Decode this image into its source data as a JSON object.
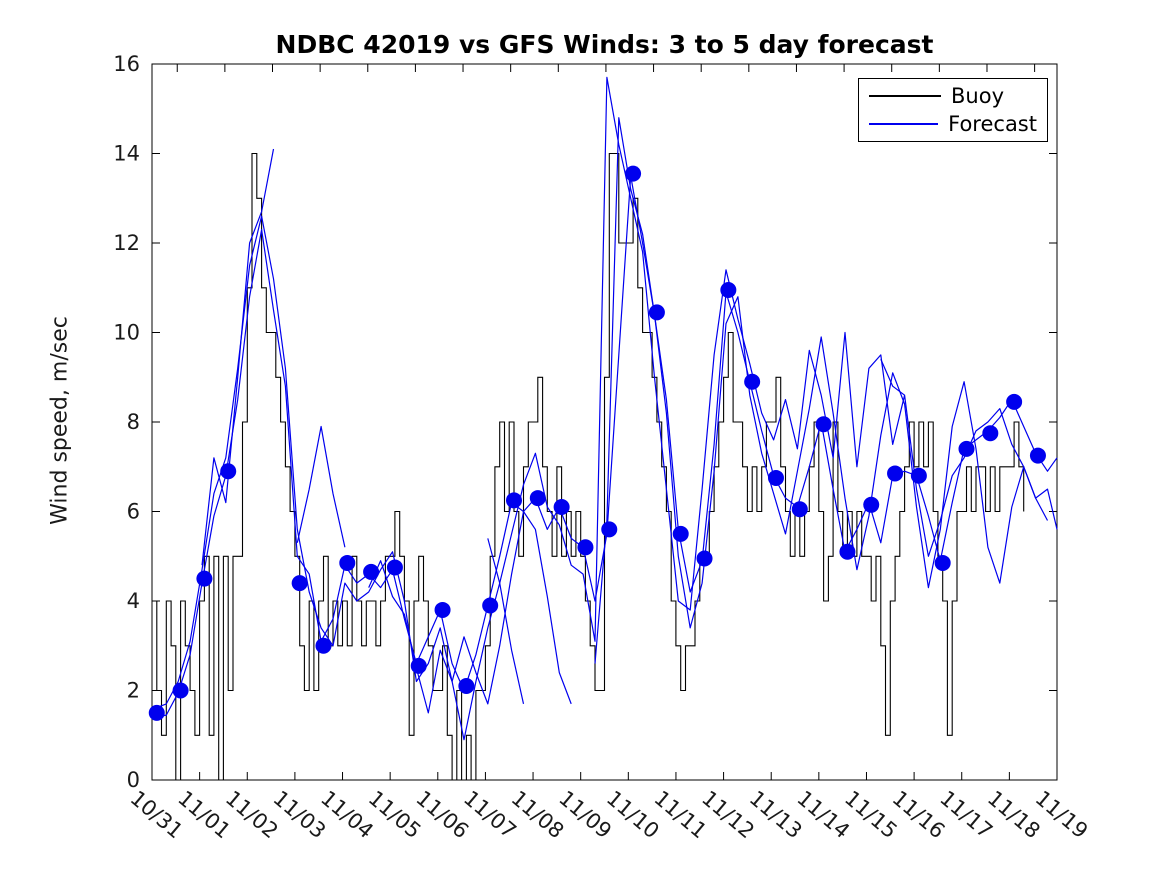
{
  "chart_data": {
    "type": "line",
    "title": "NDBC 42019 vs GFS Winds: 3 to 5 day forecast",
    "ylabel": "Wind speed, m/sec",
    "xlabel": "",
    "ylim": [
      0,
      16
    ],
    "yticks": [
      0,
      2,
      4,
      6,
      8,
      10,
      12,
      14,
      16
    ],
    "xticklabels": [
      "10/31",
      "11/01",
      "11/02",
      "11/03",
      "11/04",
      "11/05",
      "11/06",
      "11/07",
      "11/08",
      "11/09",
      "11/10",
      "11/11",
      "11/12",
      "11/13",
      "11/14",
      "11/15",
      "11/16",
      "11/17",
      "11/18",
      "11/19"
    ],
    "x_unit": "days since 10/31",
    "grid": false,
    "legend": [
      {
        "label": "Buoy",
        "color": "#000000"
      },
      {
        "label": "Forecast",
        "color": "#0000EE"
      }
    ],
    "series": {
      "buoy": {
        "name": "Buoy",
        "style": "steps",
        "color": "#000000",
        "x0": 0,
        "dt": 0.1,
        "values": [
          4,
          2,
          1,
          4,
          3,
          0,
          4,
          3,
          2,
          1,
          4,
          5,
          1,
          5,
          0,
          5,
          2,
          5,
          5,
          8,
          11,
          14,
          13,
          11,
          10,
          10,
          9,
          8,
          7,
          6,
          5,
          3,
          2,
          4,
          2,
          4,
          5,
          3,
          4,
          3,
          4,
          3,
          5,
          4,
          3,
          4,
          4,
          3,
          4,
          5,
          5,
          6,
          5,
          4,
          1,
          4,
          5,
          4,
          3,
          2,
          2,
          3,
          1,
          0,
          2,
          0,
          1,
          0,
          2,
          2,
          3,
          5,
          7,
          8,
          6,
          8,
          6,
          5,
          7,
          8,
          8,
          9,
          7,
          6,
          5,
          7,
          5,
          6,
          5,
          6,
          5,
          4,
          3,
          2,
          2,
          9,
          14,
          14,
          12,
          12,
          12,
          13,
          11,
          10,
          10,
          9,
          8,
          7,
          6,
          4,
          3,
          2,
          3,
          3,
          4,
          5,
          5,
          6,
          7,
          8,
          9,
          10,
          8,
          8,
          7,
          6,
          7,
          6,
          7,
          8,
          8,
          9,
          7,
          6,
          5,
          6,
          5,
          6,
          7,
          8,
          6,
          4,
          5,
          8,
          6,
          5,
          6,
          5,
          6,
          5,
          5,
          4,
          5,
          3,
          1,
          4,
          5,
          6,
          7,
          8,
          7,
          8,
          7,
          8,
          6,
          5,
          4,
          1,
          4,
          6,
          6,
          7,
          6,
          7,
          7,
          6,
          7,
          6,
          7,
          7,
          7,
          8,
          7,
          6
        ]
      },
      "forecast": {
        "name": "Forecast",
        "color": "#0000EE",
        "lines": [
          {
            "x0": 0.05,
            "dt": 0.25,
            "values": [
              1.4,
              1.45,
              1.95,
              2.8,
              4.4,
              5.9,
              6.8,
              8.5,
              10.8,
              12.3,
              10.5,
              8.8,
              5.0,
              4.6,
              3.1,
              3.6,
              4.8,
              4.4,
              4.6,
              4.3,
              4.7,
              3.6,
              2.6,
              3.2,
              3.8,
              2.6,
              2.0,
              2.8,
              3.9,
              5.0,
              6.2,
              6.0,
              6.3,
              5.6,
              6.1,
              5.4,
              5.2,
              4.0,
              5.5,
              9.5,
              13.5,
              12.0,
              10.4,
              8.5,
              5.6,
              4.2,
              4.9,
              7.5,
              10.9,
              10.0,
              8.9,
              7.8,
              6.8,
              6.3,
              6.1,
              7.0,
              8.0,
              6.5,
              5.1,
              5.6,
              6.2,
              5.3,
              6.8,
              6.9,
              6.8,
              5.9,
              4.9,
              6.2,
              7.4,
              7.6,
              7.8,
              8.1,
              8.5,
              7.9,
              7.3,
              6.9,
              7.2
            ]
          },
          {
            "x0": 0.05,
            "dt": 0.25,
            "values": [
              1.6,
              1.7,
              2.2,
              3.1,
              4.7,
              6.4,
              7.2,
              9.2,
              11.5,
              12.6,
              11.2,
              9.2,
              5.6,
              4.2,
              3.4,
              3.0,
              4.4,
              4.0,
              4.2,
              4.7,
              5.1,
              4.0,
              2.2,
              2.6,
              3.4,
              2.2,
              0.9,
              2.2,
              3.4,
              4.4,
              5.5,
              6.6,
              7.3,
              6.1,
              5.7,
              4.8,
              4.6,
              3.1,
              15.7,
              14.2,
              13.0,
              11.8,
              9.0,
              6.5,
              4.0,
              3.8,
              6.5,
              9.5,
              11.4,
              10.3,
              9.3,
              8.2,
              7.6,
              8.5,
              7.4,
              9.6,
              8.6,
              7.2,
              10.0,
              7.0,
              9.2,
              9.5,
              7.5,
              8.6,
              6.5,
              5.0,
              5.8,
              6.8,
              7.2,
              7.8,
              8.0,
              8.3,
              7.5,
              7.0,
              6.3,
              6.5,
              5.6
            ]
          },
          {
            "x0": 1.05,
            "dt": 0.25,
            "values": [
              4.8,
              7.2,
              6.2,
              9.0,
              12.0,
              12.7,
              14.1,
              null,
              5.3,
              6.5,
              7.9,
              6.4,
              5.2,
              null,
              4.3,
              4.9,
              4.1,
              3.7,
              2.5,
              1.5,
              2.9,
              2.2,
              3.2,
              2.4,
              1.7,
              3.0,
              4.6,
              6.0,
              5.6,
              4.1,
              2.4,
              1.7,
              null,
              2.6,
              5.8,
              14.8,
              13.2,
              12.2,
              10.4,
              8.2,
              5.0,
              3.4,
              4.4,
              6.9,
              10.2,
              10.8,
              8.6,
              7.3,
              6.4,
              5.5,
              6.9,
              8.3,
              9.9,
              8.2,
              6.3,
              4.7,
              5.9,
              7.7,
              9.1,
              8.4,
              6.1,
              4.3,
              5.6,
              7.9,
              8.9,
              7.4,
              5.2,
              4.4,
              6.1,
              7.0,
              6.3,
              5.8
            ]
          },
          {
            "x0": 7.05,
            "dt": 0.25,
            "values": [
              5.4,
              4.4,
              2.9,
              1.7
            ]
          },
          {
            "x0": 15.3,
            "dt": 0.25,
            "values": [
              9.4,
              8.8,
              8.6
            ]
          }
        ]
      },
      "forecast_markers": {
        "color": "#0000EE",
        "marker": "filled-circle",
        "points": [
          [
            0.1,
            1.5
          ],
          [
            0.6,
            2.0
          ],
          [
            1.1,
            4.5
          ],
          [
            1.6,
            6.9
          ],
          [
            3.1,
            4.4
          ],
          [
            3.6,
            3.0
          ],
          [
            4.1,
            4.85
          ],
          [
            4.6,
            4.65
          ],
          [
            5.1,
            4.75
          ],
          [
            5.6,
            2.55
          ],
          [
            6.1,
            3.8
          ],
          [
            6.6,
            2.1
          ],
          [
            7.1,
            3.9
          ],
          [
            7.6,
            6.25
          ],
          [
            8.1,
            6.3
          ],
          [
            8.6,
            6.1
          ],
          [
            9.1,
            5.2
          ],
          [
            9.6,
            5.6
          ],
          [
            10.1,
            13.55
          ],
          [
            10.6,
            10.45
          ],
          [
            11.1,
            5.5
          ],
          [
            11.6,
            4.95
          ],
          [
            12.1,
            10.95
          ],
          [
            12.6,
            8.9
          ],
          [
            13.1,
            6.75
          ],
          [
            13.6,
            6.05
          ],
          [
            14.1,
            7.95
          ],
          [
            14.6,
            5.1
          ],
          [
            15.1,
            6.15
          ],
          [
            15.6,
            6.85
          ],
          [
            16.1,
            6.8
          ],
          [
            16.6,
            4.85
          ],
          [
            17.1,
            7.4
          ],
          [
            17.6,
            7.75
          ],
          [
            18.1,
            8.45
          ],
          [
            18.6,
            7.25
          ]
        ]
      }
    }
  }
}
